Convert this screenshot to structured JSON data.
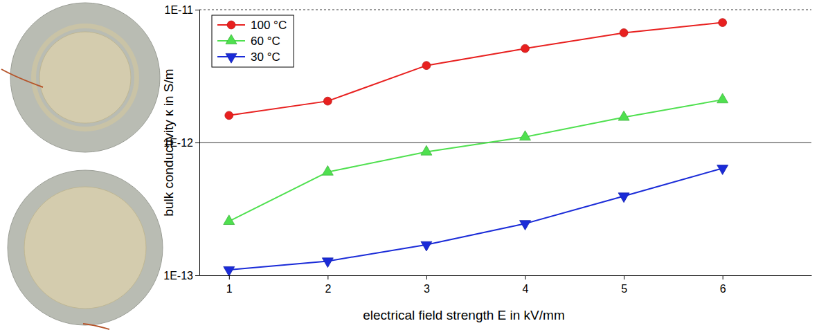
{
  "chart_data": {
    "type": "line",
    "x_label": "electrical field strength E in kV/mm",
    "y_label": "bulk conductivity κ in S/m",
    "x": [
      1,
      2,
      3,
      4,
      5,
      6
    ],
    "series": [
      {
        "name": "100 °C",
        "color": "#e8201f",
        "marker": "circle",
        "line_style": "solid",
        "values": [
          1.6e-12,
          2.05e-12,
          3.8e-12,
          5.1e-12,
          6.7e-12,
          8e-12
        ]
      },
      {
        "name": "60 °C",
        "color": "#4fe04f",
        "marker": "triangle-up",
        "line_style": "solid",
        "values": [
          2.55e-13,
          6e-13,
          8.5e-13,
          1.1e-12,
          1.55e-12,
          2.1e-12
        ]
      },
      {
        "name": "30 °C",
        "color": "#1a2bd8",
        "marker": "triangle-down",
        "line_style": "solid",
        "values": [
          1.1e-13,
          1.28e-13,
          1.7e-13,
          2.45e-13,
          3.95e-13,
          6.4e-13
        ]
      }
    ],
    "xlim": [
      0.7,
      6.9
    ],
    "xticks": [
      1,
      2,
      3,
      4,
      5,
      6
    ],
    "ylim": [
      1e-13,
      1e-11
    ],
    "yticks": [
      {
        "value": 1e-13,
        "label": "1E-13"
      },
      {
        "value": 1e-12,
        "label": "1E-12"
      },
      {
        "value": 1e-11,
        "label": "1E-11"
      }
    ],
    "log": "y",
    "grid": true,
    "legend": "upper left"
  }
}
